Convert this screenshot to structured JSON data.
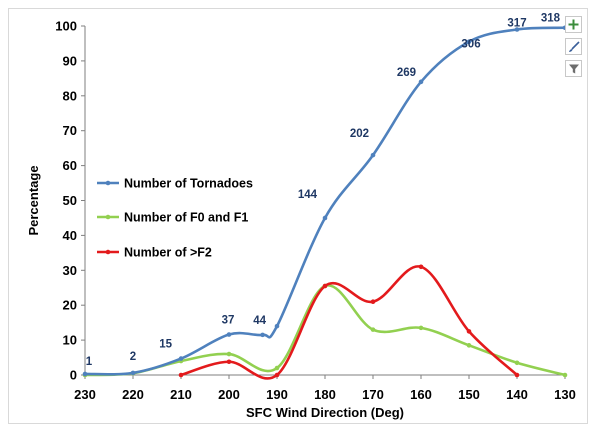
{
  "chart_data": {
    "type": "line",
    "xlabel": "SFC Wind Direction (Deg)",
    "ylabel": "Percentage",
    "x_ticks": [
      230,
      220,
      210,
      200,
      190,
      180,
      170,
      160,
      150,
      140,
      130
    ],
    "y_ticks": [
      0,
      10,
      20,
      30,
      40,
      50,
      60,
      70,
      80,
      90,
      100
    ],
    "xlim": [
      230,
      130
    ],
    "ylim": [
      0,
      100
    ],
    "x_reversed": true,
    "grid": false,
    "legend_position": "left-middle",
    "series": [
      {
        "name": "Number of Tornadoes",
        "color": "#4f81bd",
        "x": [
          230,
          220,
          210,
          200,
          193,
          190,
          180,
          170,
          160,
          150,
          140,
          130
        ],
        "y": [
          0.3,
          0.6,
          4.7,
          11.6,
          11.5,
          14,
          45,
          63,
          84,
          95.5,
          99,
          99.5
        ],
        "labels": [
          "1",
          "2",
          "15",
          "37",
          "44",
          "",
          "144",
          "202",
          "269",
          "306",
          "317",
          "318"
        ]
      },
      {
        "name": "Number of F0 and F1",
        "color": "#92d050",
        "x": [
          230,
          220,
          210,
          200,
          190,
          180,
          170,
          160,
          150,
          140,
          130
        ],
        "y": [
          0,
          0.5,
          4,
          6,
          2,
          25.5,
          13,
          13.5,
          8.5,
          3.5,
          0
        ]
      },
      {
        "name": "Number of >F2",
        "color": "#e31a1c",
        "x": [
          210,
          200,
          190,
          180,
          170,
          160,
          150,
          140
        ],
        "y": [
          0,
          3.8,
          0,
          25.5,
          21,
          31,
          12.5,
          0
        ]
      }
    ]
  },
  "toolbar": {
    "buttons": [
      {
        "name": "chart-elements-button",
        "icon": "plus-icon"
      },
      {
        "name": "chart-styles-button",
        "icon": "brush-icon"
      },
      {
        "name": "chart-filters-button",
        "icon": "filter-icon"
      }
    ]
  }
}
